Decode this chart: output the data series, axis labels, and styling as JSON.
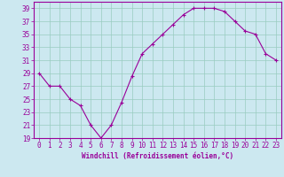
{
  "x": [
    0,
    1,
    2,
    3,
    4,
    5,
    6,
    7,
    8,
    9,
    10,
    11,
    12,
    13,
    14,
    15,
    16,
    17,
    18,
    19,
    20,
    21,
    22,
    23
  ],
  "y": [
    29,
    27,
    27,
    25,
    24,
    21,
    19,
    21,
    24.5,
    28.5,
    32,
    33.5,
    35,
    36.5,
    38,
    39,
    39,
    39,
    38.5,
    37,
    35.5,
    35,
    32,
    31
  ],
  "line_color": "#990099",
  "marker": "D",
  "marker_size": 2,
  "bg_color": "#cce8f0",
  "grid_color": "#99ccc0",
  "xlabel": "Windchill (Refroidissement éolien,°C)",
  "xlabel_color": "#990099",
  "tick_color": "#990099",
  "label_color": "#990099",
  "ylim": [
    19,
    40
  ],
  "yticks": [
    19,
    21,
    23,
    25,
    27,
    29,
    31,
    33,
    35,
    37,
    39
  ],
  "xlim": [
    -0.5,
    23.5
  ],
  "xticks": [
    0,
    1,
    2,
    3,
    4,
    5,
    6,
    7,
    8,
    9,
    10,
    11,
    12,
    13,
    14,
    15,
    16,
    17,
    18,
    19,
    20,
    21,
    22,
    23
  ]
}
